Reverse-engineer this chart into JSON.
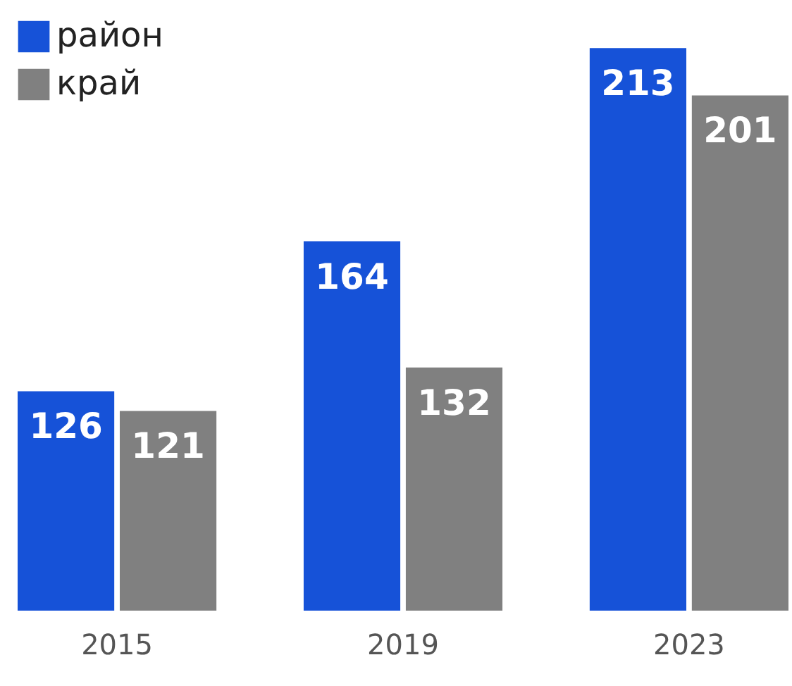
{
  "chart_data": {
    "type": "bar",
    "categories": [
      "2015",
      "2019",
      "2023"
    ],
    "series": [
      {
        "name": "район",
        "color": "#1652d8",
        "values": [
          126,
          164,
          213
        ]
      },
      {
        "name": "край",
        "color": "#808080",
        "values": [
          121,
          132,
          201
        ]
      }
    ],
    "ylim": [
      70,
      220
    ],
    "data_labels": true,
    "legend": "top left",
    "grid": false
  }
}
